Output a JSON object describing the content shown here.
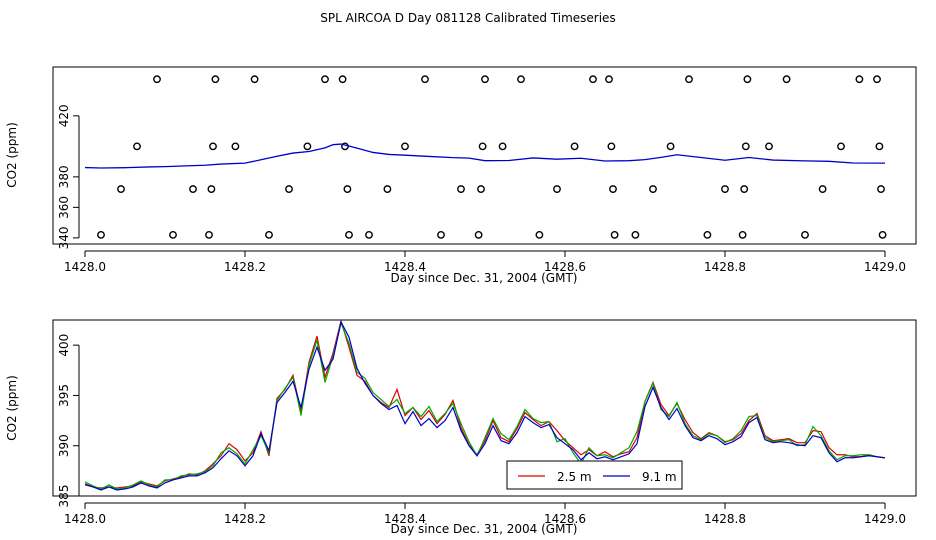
{
  "title": "SPL AIRCOA D  Day 081128  Calibrated Timeseries",
  "chart_data": [
    {
      "type": "scatter",
      "xlabel": "Day since Dec. 31, 2004 (GMT)",
      "ylabel": "CO2 (ppm)",
      "xlim": [
        1428.0,
        1429.0
      ],
      "ylim": [
        336,
        452
      ],
      "x_ticks": [
        "1428.0",
        "1428.2",
        "1428.4",
        "1428.6",
        "1428.8",
        "1429.0"
      ],
      "y_ticks": [
        "340",
        "360",
        "380",
        "420"
      ],
      "grid": false,
      "line_series": {
        "color": "#0000cc",
        "x": [
          1428.0,
          1428.02,
          1428.05,
          1428.08,
          1428.1,
          1428.13,
          1428.15,
          1428.17,
          1428.2,
          1428.22,
          1428.24,
          1428.26,
          1428.28,
          1428.3,
          1428.31,
          1428.32,
          1428.34,
          1428.36,
          1428.38,
          1428.4,
          1428.43,
          1428.46,
          1428.48,
          1428.5,
          1428.53,
          1428.56,
          1428.59,
          1428.62,
          1428.65,
          1428.68,
          1428.7,
          1428.72,
          1428.74,
          1428.77,
          1428.8,
          1428.83,
          1428.86,
          1428.9,
          1428.93,
          1428.96,
          1429.0
        ],
        "y": [
          386.1,
          385.8,
          386.0,
          386.5,
          386.7,
          387.3,
          387.6,
          388.4,
          389.0,
          391.2,
          393.5,
          395.6,
          396.6,
          399.0,
          401.1,
          401.5,
          398.8,
          396.0,
          394.7,
          394.2,
          393.4,
          392.6,
          392.3,
          390.6,
          390.7,
          392.4,
          391.6,
          392.2,
          390.4,
          390.6,
          391.3,
          392.8,
          394.5,
          392.7,
          390.9,
          392.7,
          391.0,
          390.5,
          390.2,
          389.1,
          389.0
        ]
      },
      "points": [
        {
          "x": 1428.02,
          "y": 342
        },
        {
          "x": 1428.045,
          "y": 372
        },
        {
          "x": 1428.065,
          "y": 400
        },
        {
          "x": 1428.09,
          "y": 444
        },
        {
          "x": 1428.11,
          "y": 342
        },
        {
          "x": 1428.135,
          "y": 372
        },
        {
          "x": 1428.155,
          "y": 342
        },
        {
          "x": 1428.158,
          "y": 372
        },
        {
          "x": 1428.16,
          "y": 400
        },
        {
          "x": 1428.163,
          "y": 444
        },
        {
          "x": 1428.188,
          "y": 400
        },
        {
          "x": 1428.212,
          "y": 444
        },
        {
          "x": 1428.23,
          "y": 342
        },
        {
          "x": 1428.255,
          "y": 372
        },
        {
          "x": 1428.278,
          "y": 400
        },
        {
          "x": 1428.3,
          "y": 444
        },
        {
          "x": 1428.322,
          "y": 444
        },
        {
          "x": 1428.325,
          "y": 400
        },
        {
          "x": 1428.328,
          "y": 372
        },
        {
          "x": 1428.33,
          "y": 342
        },
        {
          "x": 1428.355,
          "y": 342
        },
        {
          "x": 1428.378,
          "y": 372
        },
        {
          "x": 1428.4,
          "y": 400
        },
        {
          "x": 1428.425,
          "y": 444
        },
        {
          "x": 1428.445,
          "y": 342
        },
        {
          "x": 1428.47,
          "y": 372
        },
        {
          "x": 1428.492,
          "y": 342
        },
        {
          "x": 1428.495,
          "y": 372
        },
        {
          "x": 1428.497,
          "y": 400
        },
        {
          "x": 1428.5,
          "y": 444
        },
        {
          "x": 1428.522,
          "y": 400
        },
        {
          "x": 1428.545,
          "y": 444
        },
        {
          "x": 1428.568,
          "y": 342
        },
        {
          "x": 1428.59,
          "y": 372
        },
        {
          "x": 1428.612,
          "y": 400
        },
        {
          "x": 1428.635,
          "y": 444
        },
        {
          "x": 1428.655,
          "y": 444
        },
        {
          "x": 1428.658,
          "y": 400
        },
        {
          "x": 1428.66,
          "y": 372
        },
        {
          "x": 1428.662,
          "y": 342
        },
        {
          "x": 1428.688,
          "y": 342
        },
        {
          "x": 1428.71,
          "y": 372
        },
        {
          "x": 1428.732,
          "y": 400
        },
        {
          "x": 1428.755,
          "y": 444
        },
        {
          "x": 1428.778,
          "y": 342
        },
        {
          "x": 1428.8,
          "y": 372
        },
        {
          "x": 1428.822,
          "y": 342
        },
        {
          "x": 1428.824,
          "y": 372
        },
        {
          "x": 1428.826,
          "y": 400
        },
        {
          "x": 1428.828,
          "y": 444
        },
        {
          "x": 1428.855,
          "y": 400
        },
        {
          "x": 1428.877,
          "y": 444
        },
        {
          "x": 1428.9,
          "y": 342
        },
        {
          "x": 1428.922,
          "y": 372
        },
        {
          "x": 1428.945,
          "y": 400
        },
        {
          "x": 1428.968,
          "y": 444
        },
        {
          "x": 1428.99,
          "y": 444
        },
        {
          "x": 1428.993,
          "y": 400
        },
        {
          "x": 1428.995,
          "y": 372
        },
        {
          "x": 1428.997,
          "y": 342
        }
      ]
    },
    {
      "type": "line",
      "xlabel": "Day since Dec. 31, 2004 (GMT)",
      "ylabel": "CO2 (ppm)",
      "xlim": [
        1428.0,
        1429.0
      ],
      "ylim": [
        385,
        402.5
      ],
      "x_ticks": [
        "1428.0",
        "1428.2",
        "1428.4",
        "1428.6",
        "1428.8",
        "1429.0"
      ],
      "y_ticks": [
        "385",
        "390",
        "395",
        "400"
      ],
      "grid": false,
      "legend": {
        "position": "bottom-center",
        "entries": [
          {
            "label": "2.5 m",
            "color": "#dd0000"
          },
          {
            "label": "9.1 m",
            "color": "#0000cc"
          }
        ]
      },
      "x": [
        1428.0,
        1428.01,
        1428.02,
        1428.03,
        1428.04,
        1428.05,
        1428.06,
        1428.07,
        1428.08,
        1428.09,
        1428.1,
        1428.11,
        1428.12,
        1428.13,
        1428.14,
        1428.15,
        1428.16,
        1428.17,
        1428.18,
        1428.19,
        1428.2,
        1428.21,
        1428.22,
        1428.23,
        1428.24,
        1428.25,
        1428.26,
        1428.27,
        1428.28,
        1428.29,
        1428.3,
        1428.31,
        1428.32,
        1428.33,
        1428.34,
        1428.35,
        1428.36,
        1428.37,
        1428.38,
        1428.39,
        1428.4,
        1428.41,
        1428.42,
        1428.43,
        1428.44,
        1428.45,
        1428.46,
        1428.47,
        1428.48,
        1428.49,
        1428.5,
        1428.51,
        1428.52,
        1428.53,
        1428.54,
        1428.55,
        1428.56,
        1428.57,
        1428.58,
        1428.59,
        1428.6,
        1428.61,
        1428.62,
        1428.63,
        1428.64,
        1428.65,
        1428.66,
        1428.67,
        1428.68,
        1428.69,
        1428.7,
        1428.71,
        1428.72,
        1428.73,
        1428.74,
        1428.75,
        1428.76,
        1428.77,
        1428.78,
        1428.79,
        1428.8,
        1428.81,
        1428.82,
        1428.83,
        1428.84,
        1428.85,
        1428.86,
        1428.87,
        1428.88,
        1428.89,
        1428.9,
        1428.91,
        1428.92,
        1428.93,
        1428.94,
        1428.95,
        1428.96,
        1428.97,
        1428.98,
        1428.99,
        1429.0
      ],
      "series": [
        {
          "name": "2.5 m",
          "color": "#dd0000",
          "values": [
            386.1,
            385.9,
            385.8,
            385.9,
            385.8,
            385.9,
            386.0,
            386.4,
            386.2,
            386.0,
            386.5,
            386.7,
            386.9,
            387.2,
            387.1,
            387.5,
            388.2,
            389.0,
            390.2,
            389.6,
            388.5,
            389.3,
            391.4,
            389.0,
            394.7,
            395.6,
            397.0,
            393.4,
            398.3,
            400.9,
            396.8,
            399.2,
            402.4,
            399.8,
            397.0,
            396.4,
            395.0,
            394.3,
            393.8,
            395.6,
            393.0,
            393.8,
            392.6,
            393.5,
            392.2,
            393.1,
            394.5,
            391.8,
            390.1,
            389.1,
            390.5,
            392.5,
            390.8,
            390.4,
            391.7,
            393.3,
            392.6,
            392.0,
            392.4,
            391.5,
            390.5,
            389.8,
            389.1,
            389.6,
            389.0,
            389.4,
            388.9,
            389.2,
            389.4,
            390.8,
            394.4,
            396.3,
            394.1,
            393.0,
            394.2,
            392.6,
            391.3,
            390.7,
            391.3,
            391.0,
            390.4,
            390.6,
            391.2,
            392.5,
            393.2,
            391.0,
            390.5,
            390.6,
            390.7,
            390.3,
            390.3,
            391.5,
            391.4,
            389.8,
            389.1,
            389.1,
            388.9,
            388.9,
            389.1,
            388.9,
            388.8
          ]
        },
        {
          "name": "",
          "color": "#00aa00",
          "values": [
            386.4,
            386.0,
            385.7,
            386.1,
            385.7,
            385.8,
            386.1,
            386.5,
            386.1,
            385.9,
            386.6,
            386.6,
            387.0,
            387.1,
            387.2,
            387.4,
            388.0,
            389.3,
            389.8,
            389.2,
            388.2,
            389.6,
            391.0,
            389.3,
            394.5,
            395.7,
            396.8,
            393.0,
            398.0,
            400.5,
            396.3,
            398.9,
            402.2,
            400.2,
            397.3,
            396.7,
            395.3,
            394.6,
            393.9,
            394.6,
            393.2,
            393.8,
            392.9,
            393.9,
            392.4,
            393.2,
            394.2,
            392.2,
            390.4,
            389.0,
            390.8,
            392.7,
            391.2,
            390.6,
            391.9,
            393.6,
            392.7,
            392.3,
            392.4,
            390.4,
            390.7,
            389.3,
            388.2,
            389.8,
            389.0,
            389.1,
            388.8,
            389.3,
            389.8,
            391.4,
            394.4,
            396.2,
            393.6,
            392.9,
            394.3,
            392.2,
            391.0,
            390.6,
            391.2,
            391.0,
            390.3,
            390.7,
            391.5,
            392.9,
            393.0,
            390.8,
            390.4,
            390.5,
            390.6,
            390.0,
            390.1,
            391.9,
            391.0,
            389.5,
            388.6,
            389.0,
            389.0,
            389.1,
            389.1,
            388.9,
            388.8
          ]
        },
        {
          "name": "9.1 m",
          "color": "#0000cc",
          "values": [
            386.2,
            385.9,
            385.6,
            385.9,
            385.6,
            385.7,
            385.9,
            386.3,
            386.0,
            385.8,
            386.3,
            386.6,
            386.8,
            387.0,
            387.0,
            387.3,
            387.8,
            388.7,
            389.5,
            389.0,
            388.0,
            389.0,
            391.2,
            389.5,
            394.3,
            395.3,
            396.4,
            393.8,
            397.6,
            399.8,
            397.5,
            398.6,
            402.3,
            400.8,
            397.7,
            396.2,
            395.0,
            394.2,
            393.6,
            394.0,
            392.2,
            393.4,
            392.0,
            392.7,
            391.8,
            392.5,
            393.8,
            391.5,
            390.0,
            389.0,
            390.2,
            392.0,
            390.5,
            390.2,
            391.3,
            392.9,
            392.3,
            391.8,
            392.1,
            390.8,
            390.2,
            389.6,
            388.6,
            389.3,
            388.7,
            388.9,
            388.6,
            388.9,
            389.2,
            390.2,
            393.9,
            395.8,
            393.8,
            392.6,
            393.7,
            392.0,
            390.8,
            390.5,
            391.0,
            390.7,
            390.1,
            390.4,
            390.9,
            392.3,
            392.8,
            390.6,
            390.3,
            390.4,
            390.3,
            390.1,
            390.0,
            391.0,
            390.8,
            389.3,
            388.4,
            388.8,
            388.8,
            388.9,
            389.0,
            388.9,
            388.8
          ]
        }
      ]
    }
  ]
}
